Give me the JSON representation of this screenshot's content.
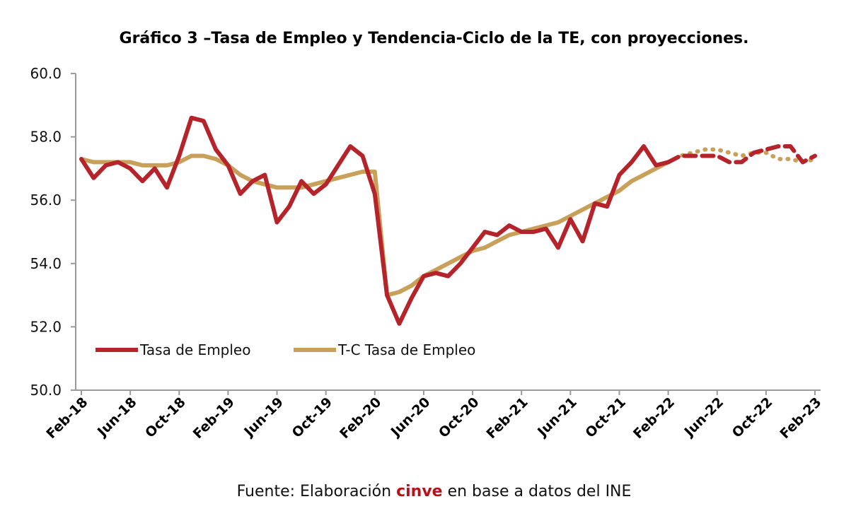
{
  "chart_data": {
    "type": "line",
    "title": "Gráfico 3 –Tasa de Empleo y Tendencia-Ciclo de la TE, con proyecciones.",
    "xlabel": "",
    "ylabel": "",
    "ylim": [
      50,
      60
    ],
    "y_ticks": [
      "60.0",
      "58.0",
      "56.0",
      "54.0",
      "52.0",
      "50.0"
    ],
    "x_ticks": [
      "Feb-18",
      "Jun-18",
      "Oct-18",
      "Feb-19",
      "Jun-19",
      "Oct-19",
      "Feb-20",
      "Jun-20",
      "Oct-20",
      "Feb-21",
      "Jun-21",
      "Oct-21",
      "Feb-22",
      "Jun-22",
      "Oct-22",
      "Feb-23"
    ],
    "x_start": "Feb-18",
    "x_end": "Feb-23",
    "grid": false,
    "legend_position": "bottom-left",
    "series": [
      {
        "name": "Tasa de Empleo",
        "color": "#b5232b",
        "style": "solid",
        "values": [
          57.3,
          56.7,
          57.1,
          57.2,
          57.0,
          56.6,
          57.0,
          56.4,
          57.4,
          58.6,
          58.5,
          57.6,
          57.1,
          56.2,
          56.6,
          56.8,
          55.3,
          55.8,
          56.6,
          56.2,
          56.5,
          57.1,
          57.7,
          57.4,
          56.2,
          53.0,
          52.1,
          52.9,
          53.6,
          53.7,
          53.6,
          54.0,
          54.5,
          55.0,
          54.9,
          55.2,
          55.0,
          55.0,
          55.1,
          54.5,
          55.4,
          54.7,
          55.9,
          55.8,
          56.8,
          57.2,
          57.7,
          57.1,
          57.2
        ],
        "projection": {
          "style": "dashed",
          "values": [
            57.2,
            57.4,
            57.4,
            57.4,
            57.4,
            57.2,
            57.2,
            57.5,
            57.6,
            57.7,
            57.7,
            57.2,
            57.4
          ]
        }
      },
      {
        "name": "T-C Tasa de Empleo",
        "color": "#c9a05a",
        "style": "solid",
        "values": [
          57.3,
          57.2,
          57.2,
          57.2,
          57.2,
          57.1,
          57.1,
          57.1,
          57.2,
          57.4,
          57.4,
          57.3,
          57.1,
          56.8,
          56.6,
          56.5,
          56.4,
          56.4,
          56.4,
          56.5,
          56.6,
          56.7,
          56.8,
          56.9,
          56.9,
          53.0,
          53.1,
          53.3,
          53.6,
          53.8,
          54.0,
          54.2,
          54.4,
          54.5,
          54.7,
          54.9,
          55.0,
          55.1,
          55.2,
          55.3,
          55.5,
          55.7,
          55.9,
          56.1,
          56.3,
          56.6,
          56.8,
          57.0,
          57.2
        ],
        "projection": {
          "style": "dotted",
          "values": [
            57.2,
            57.4,
            57.5,
            57.6,
            57.6,
            57.5,
            57.4,
            57.5,
            57.5,
            57.3,
            57.3,
            57.2,
            57.3
          ]
        }
      }
    ]
  },
  "footer": {
    "source_prefix": "Fuente: Elaboración ",
    "source_brand": "cinve",
    "source_suffix": " en base a datos del INE"
  }
}
